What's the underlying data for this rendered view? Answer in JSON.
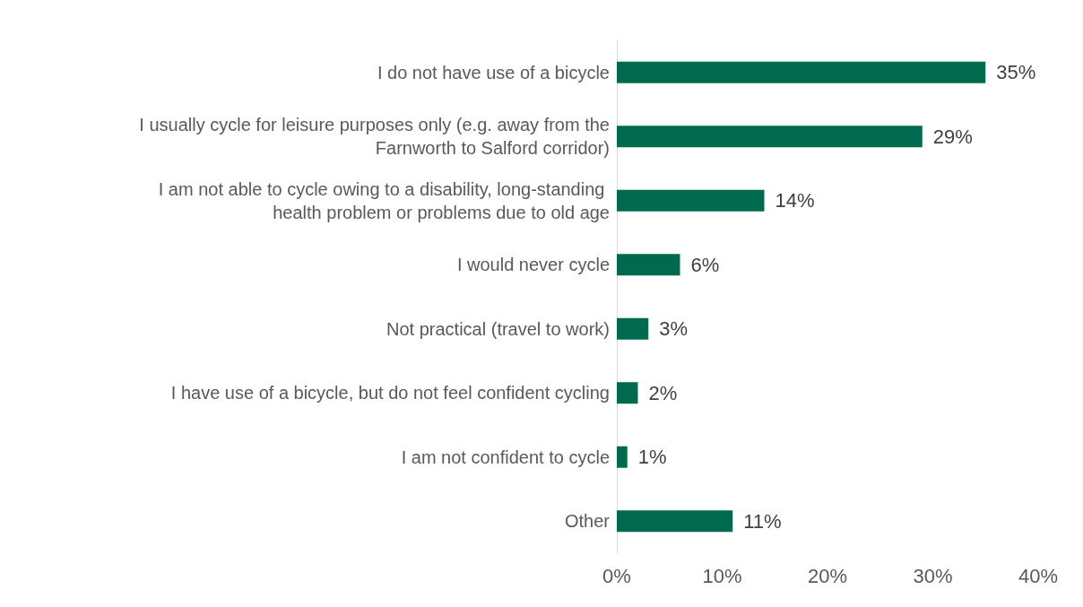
{
  "chart_data": {
    "type": "bar",
    "orientation": "horizontal",
    "categories": [
      "I do not have use of a bicycle",
      "I usually cycle for leisure purposes only (e.g. away from the Farnworth to Salford corridor)",
      "I am not able to cycle owing to a disability, long-standing health problem or problems due to old age",
      "I would never cycle",
      "Not practical (travel to work)",
      "I have use of a bicycle, but do not feel confident cycling",
      "I am not confident to cycle",
      "Other"
    ],
    "values": [
      35,
      29,
      14,
      6,
      3,
      2,
      1,
      11
    ],
    "value_labels": [
      "35%",
      "29%",
      "14%",
      "6%",
      "3%",
      "2%",
      "1%",
      "11%"
    ],
    "color": "#006a4e",
    "xlim": [
      0,
      40
    ],
    "xticks": [
      {
        "value": 0,
        "label": "0%"
      },
      {
        "value": 10,
        "label": "10%"
      },
      {
        "value": 20,
        "label": "20%"
      },
      {
        "value": 30,
        "label": "30%"
      },
      {
        "value": 40,
        "label": "40%"
      }
    ],
    "grid": false
  }
}
